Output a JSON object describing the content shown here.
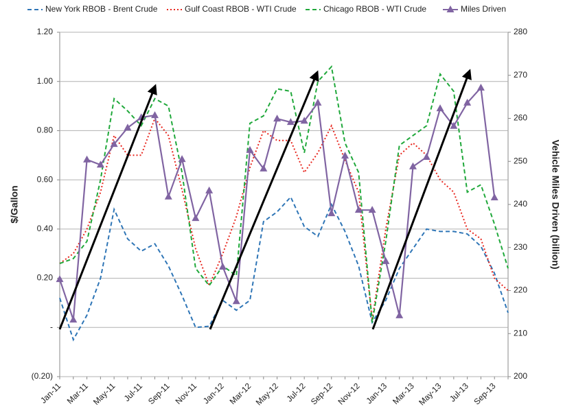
{
  "chart_data": {
    "type": "line",
    "y_label": "$/Gallon",
    "y2_label": "Vehicle Miles Driven (billion)",
    "categories": [
      "Jan-11",
      null,
      "Mar-11",
      null,
      "May-11",
      null,
      "Jul-11",
      null,
      "Sep-11",
      null,
      "Nov-11",
      null,
      "Jan-12",
      null,
      "Mar-12",
      null,
      "May-12",
      null,
      "Jul-12",
      null,
      "Sep-12",
      null,
      "Nov-12",
      null,
      "Jan-13",
      null,
      "Mar-13",
      null,
      "May-13",
      null,
      "Jul-13",
      null,
      "Sep-13",
      null
    ],
    "ylim": [
      -0.2,
      1.2
    ],
    "yticks": [
      {
        "value": -0.2,
        "label": "(0.20)"
      },
      {
        "value": 0,
        "label": "-"
      },
      {
        "value": 0.2,
        "label": "0.20"
      },
      {
        "value": 0.4,
        "label": "0.40"
      },
      {
        "value": 0.6,
        "label": "0.60"
      },
      {
        "value": 0.8,
        "label": "0.80"
      },
      {
        "value": 1.0,
        "label": "1.00"
      },
      {
        "value": 1.2,
        "label": "1.20"
      }
    ],
    "y2lim": [
      200,
      280
    ],
    "y2ticks": [
      200,
      210,
      220,
      230,
      240,
      250,
      260,
      270,
      280
    ],
    "grid": true,
    "legend": "top",
    "series": [
      {
        "name": "New York RBOB - Brent Crude",
        "color": "#2e75b6",
        "dash": "dashed",
        "values": [
          0.12,
          -0.05,
          0.05,
          0.2,
          0.48,
          0.36,
          0.31,
          0.34,
          0.25,
          0.13,
          0.0,
          0.005,
          0.11,
          0.07,
          0.11,
          0.43,
          0.47,
          0.53,
          0.41,
          0.37,
          0.5,
          0.39,
          0.25,
          0.02,
          0.11,
          0.24,
          0.32,
          0.4,
          0.39,
          0.39,
          0.38,
          0.33,
          0.22,
          0.06
        ]
      },
      {
        "name": "Gulf Coast RBOB - WTI Crude",
        "color": "#e8261e",
        "dash": "dotted",
        "values": [
          0.26,
          0.3,
          0.4,
          0.55,
          0.78,
          0.7,
          0.7,
          0.85,
          0.78,
          0.56,
          0.32,
          0.17,
          0.3,
          0.45,
          0.65,
          0.8,
          0.76,
          0.76,
          0.63,
          0.71,
          0.82,
          0.68,
          0.55,
          0.03,
          0.4,
          0.7,
          0.75,
          0.7,
          0.6,
          0.55,
          0.4,
          0.36,
          0.2,
          0.15
        ]
      },
      {
        "name": "Chicago RBOB - WTI Crude",
        "color": "#1fa83a",
        "dash": "dashed",
        "values": [
          0.26,
          0.28,
          0.35,
          0.6,
          0.93,
          0.88,
          0.82,
          0.93,
          0.9,
          0.63,
          0.24,
          0.17,
          0.25,
          0.21,
          0.83,
          0.86,
          0.97,
          0.96,
          0.71,
          1.0,
          1.06,
          0.75,
          0.63,
          0.02,
          0.35,
          0.74,
          0.78,
          0.82,
          1.03,
          0.96,
          0.55,
          0.58,
          0.42,
          0.24
        ]
      },
      {
        "name": "Miles Driven",
        "color": "#8064a2",
        "dash": "solid",
        "marker": "triangle",
        "axis": "y2",
        "values": [
          222.6,
          213.2,
          250.4,
          249.2,
          254,
          257.8,
          260.2,
          260.7,
          241.8,
          250.5,
          236.8,
          243.2,
          225.5,
          217.5,
          252.6,
          248.3,
          259.9,
          259.1,
          259.4,
          263.6,
          237.9,
          251.3,
          238.7,
          238.7,
          226.8,
          214.2,
          248.8,
          251,
          262.3,
          258.2,
          263.6,
          267.1,
          241.6,
          null
        ]
      }
    ]
  }
}
